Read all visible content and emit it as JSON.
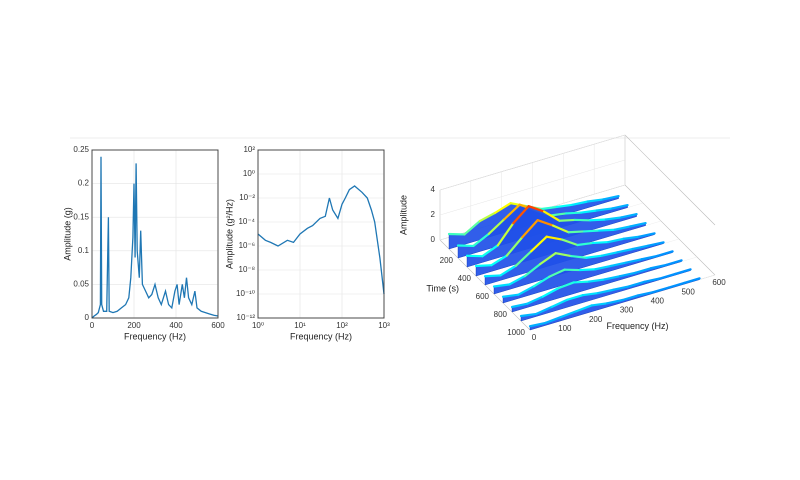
{
  "chart_data": [
    {
      "type": "line",
      "x_label": "Frequency (Hz)",
      "y_label": "Amplitude (g)",
      "x": [
        0,
        10,
        20,
        30,
        40,
        43,
        46,
        55,
        70,
        78,
        82,
        100,
        120,
        140,
        160,
        175,
        185,
        195,
        200,
        205,
        210,
        215,
        225,
        232,
        240,
        255,
        270,
        285,
        300,
        315,
        330,
        350,
        365,
        380,
        395,
        405,
        415,
        430,
        440,
        450,
        460,
        475,
        490,
        500,
        520,
        540,
        560,
        580,
        600
      ],
      "values": [
        0,
        0.003,
        0.005,
        0.008,
        0.02,
        0.24,
        0.02,
        0.01,
        0.01,
        0.15,
        0.01,
        0.008,
        0.01,
        0.015,
        0.02,
        0.03,
        0.06,
        0.12,
        0.2,
        0.09,
        0.23,
        0.1,
        0.06,
        0.13,
        0.05,
        0.04,
        0.03,
        0.035,
        0.05,
        0.03,
        0.02,
        0.04,
        0.02,
        0.015,
        0.04,
        0.05,
        0.02,
        0.05,
        0.03,
        0.06,
        0.03,
        0.02,
        0.04,
        0.015,
        0.01,
        0.008,
        0.006,
        0.004,
        0.003
      ],
      "color": "#1f77b4",
      "xlim": [
        0,
        600
      ],
      "xticks": [
        0,
        200,
        400,
        600
      ],
      "ylim": [
        0,
        0.25
      ],
      "yticks": [
        0,
        0.05,
        0.1,
        0.15,
        0.2,
        0.25
      ],
      "grid": true
    },
    {
      "type": "line",
      "x_label": "Frequency (Hz)",
      "y_label": "Amplitude (g²/Hz)",
      "x": [
        1,
        1.5,
        2,
        3,
        5,
        7,
        10,
        15,
        20,
        30,
        40,
        50,
        60,
        80,
        100,
        120,
        150,
        200,
        300,
        400,
        500,
        600,
        800,
        1000
      ],
      "values": [
        1e-05,
        3e-06,
        2e-06,
        1e-06,
        3e-06,
        2e-06,
        1e-05,
        3e-05,
        5e-05,
        0.0002,
        0.0003,
        0.01,
        0.001,
        0.0002,
        0.003,
        0.01,
        0.05,
        0.1,
        0.03,
        0.01,
        0.001,
        0.0001,
        1e-07,
        1e-10
      ],
      "color": "#1f77b4",
      "log_x": true,
      "log_y": true,
      "xlim": [
        1,
        1000
      ],
      "xticks": [
        {
          "value": 1,
          "label": "10⁰"
        },
        {
          "value": 10,
          "label": "10¹"
        },
        {
          "value": 100,
          "label": "10²"
        },
        {
          "value": 1000,
          "label": "10³"
        }
      ],
      "ylim": [
        1e-12,
        100
      ],
      "yticks": [
        {
          "value": 1e-12,
          "label": "10⁻¹²"
        },
        {
          "value": 1e-10,
          "label": "10⁻¹⁰"
        },
        {
          "value": 1e-08,
          "label": "10⁻⁸"
        },
        {
          "value": 1e-06,
          "label": "10⁻⁶"
        },
        {
          "value": 0.0001,
          "label": "10⁻⁴"
        },
        {
          "value": 0.01,
          "label": "10⁻²"
        },
        {
          "value": 1,
          "label": "10⁰"
        },
        {
          "value": 100,
          "label": "10²"
        }
      ],
      "grid": true
    },
    {
      "type": "waterfall",
      "x_label": "Frequency (Hz)",
      "y_label": "Time (s)",
      "z_label": "Amplitude",
      "x": [
        0,
        50,
        100,
        150,
        200,
        250,
        300,
        350,
        400,
        450,
        500,
        550
      ],
      "times": [
        100,
        200,
        300,
        400,
        500,
        600,
        700,
        800,
        900,
        1000
      ],
      "values": [
        [
          1.2,
          0.8,
          1.5,
          1.8,
          2.2,
          1.6,
          1.0,
          0.8,
          0.6,
          0.5,
          0.3,
          0.2
        ],
        [
          1.0,
          0.6,
          1.2,
          2.0,
          2.8,
          2.0,
          1.2,
          1.0,
          0.7,
          0.5,
          0.3,
          0.2
        ],
        [
          0.9,
          0.5,
          1.0,
          2.4,
          3.4,
          2.6,
          1.5,
          1.2,
          0.8,
          0.5,
          0.3,
          0.2
        ],
        [
          0.8,
          0.5,
          0.9,
          2.0,
          3.0,
          2.2,
          1.3,
          1.0,
          0.7,
          0.4,
          0.3,
          0.2
        ],
        [
          0.7,
          0.4,
          0.8,
          1.6,
          2.4,
          1.8,
          1.0,
          0.8,
          0.5,
          0.4,
          0.2,
          0.1
        ],
        [
          0.6,
          0.4,
          0.7,
          1.3,
          1.8,
          1.2,
          0.7,
          0.5,
          0.4,
          0.3,
          0.2,
          0.1
        ],
        [
          0.5,
          0.3,
          0.6,
          1.0,
          1.2,
          0.8,
          0.5,
          0.4,
          0.3,
          0.2,
          0.1,
          0.1
        ],
        [
          0.4,
          0.3,
          0.5,
          0.8,
          0.9,
          0.6,
          0.4,
          0.3,
          0.2,
          0.2,
          0.1,
          0.1
        ],
        [
          0.4,
          0.2,
          0.4,
          0.6,
          0.6,
          0.4,
          0.3,
          0.2,
          0.2,
          0.1,
          0.1,
          0.1
        ],
        [
          0.3,
          0.2,
          0.3,
          0.4,
          0.5,
          0.3,
          0.2,
          0.2,
          0.1,
          0.1,
          0.1,
          0.1
        ]
      ],
      "xlim": [
        0,
        600
      ],
      "xticks": [
        0,
        100,
        200,
        300,
        400,
        500,
        600
      ],
      "ylim": [
        0,
        1000
      ],
      "yticks": [
        200,
        400,
        600,
        800,
        1000
      ],
      "zlim": [
        0,
        4
      ],
      "zticks": [
        0,
        2,
        4
      ]
    }
  ]
}
